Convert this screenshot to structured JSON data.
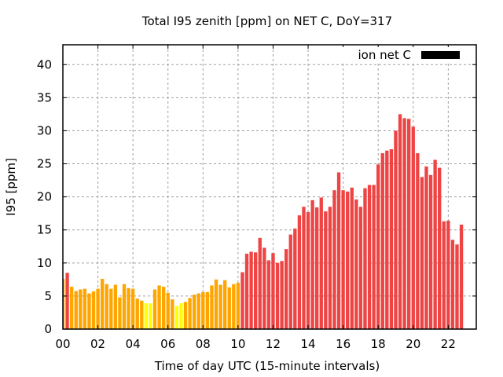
{
  "chart_data": {
    "type": "bar",
    "title": "Total I95 zenith [ppm] on NET C, DoY=317",
    "xlabel": "Time of day UTC (15-minute intervals)",
    "ylabel": "I95 [ppm]",
    "ylim": [
      0,
      43
    ],
    "xlim_hours": [
      0,
      23.6
    ],
    "grid": true,
    "legend": {
      "label": "ion net C",
      "placement": "top-right",
      "swatch_color": "#000000"
    },
    "x_ticks": [
      "00",
      "02",
      "04",
      "06",
      "08",
      "10",
      "12",
      "14",
      "16",
      "18",
      "20",
      "22"
    ],
    "x_tick_hours": [
      0,
      2,
      4,
      6,
      8,
      10,
      12,
      14,
      16,
      18,
      20,
      22
    ],
    "y_ticks": [
      0,
      5,
      10,
      15,
      20,
      25,
      30,
      35,
      40
    ],
    "interval_minutes": 15,
    "colors": {
      "red": "#ee4444",
      "orange": "#ffa500",
      "yellow": "#ffff00"
    },
    "values": [
      7.6,
      8.5,
      6.4,
      5.75,
      6.0,
      6.1,
      5.4,
      5.7,
      6.1,
      7.6,
      6.8,
      6.1,
      6.7,
      4.8,
      6.8,
      6.2,
      6.1,
      4.6,
      4.3,
      3.9,
      3.9,
      6.0,
      6.6,
      6.4,
      5.5,
      4.5,
      3.5,
      3.9,
      4.1,
      4.7,
      5.2,
      5.4,
      5.6,
      5.6,
      6.6,
      7.5,
      6.7,
      7.4,
      6.3,
      6.8,
      7.0,
      8.6,
      11.4,
      11.7,
      11.6,
      13.8,
      12.3,
      10.4,
      11.5,
      10.0,
      10.3,
      12.1,
      14.3,
      15.2,
      17.2,
      18.5,
      17.7,
      19.5,
      18.4,
      19.9,
      17.8,
      18.5,
      21.0,
      23.7,
      21.0,
      20.8,
      21.4,
      19.6,
      18.5,
      21.3,
      21.8,
      21.8,
      24.9,
      26.6,
      27.0,
      27.2,
      30.0,
      32.5,
      31.9,
      31.8,
      30.6,
      26.6,
      23.0,
      24.6,
      23.3,
      25.6,
      24.4,
      16.3,
      16.4,
      13.5,
      12.8,
      15.8
    ],
    "bar_colors": [
      "orange",
      "red",
      "orange",
      "orange",
      "orange",
      "orange",
      "orange",
      "orange",
      "orange",
      "orange",
      "orange",
      "orange",
      "orange",
      "orange",
      "orange",
      "orange",
      "orange",
      "orange",
      "orange",
      "yellow",
      "yellow",
      "orange",
      "orange",
      "orange",
      "orange",
      "orange",
      "yellow",
      "yellow",
      "orange",
      "orange",
      "orange",
      "orange",
      "orange",
      "orange",
      "orange",
      "orange",
      "orange",
      "orange",
      "orange",
      "orange",
      "orange",
      "red",
      "red",
      "red",
      "red",
      "red",
      "red",
      "red",
      "red",
      "red",
      "red",
      "red",
      "red",
      "red",
      "red",
      "red",
      "red",
      "red",
      "red",
      "red",
      "red",
      "red",
      "red",
      "red",
      "red",
      "red",
      "red",
      "red",
      "red",
      "red",
      "red",
      "red",
      "red",
      "red",
      "red",
      "red",
      "red",
      "red",
      "red",
      "red",
      "red",
      "red",
      "red",
      "red",
      "red",
      "red",
      "red",
      "red",
      "red",
      "red",
      "red",
      "red"
    ]
  }
}
